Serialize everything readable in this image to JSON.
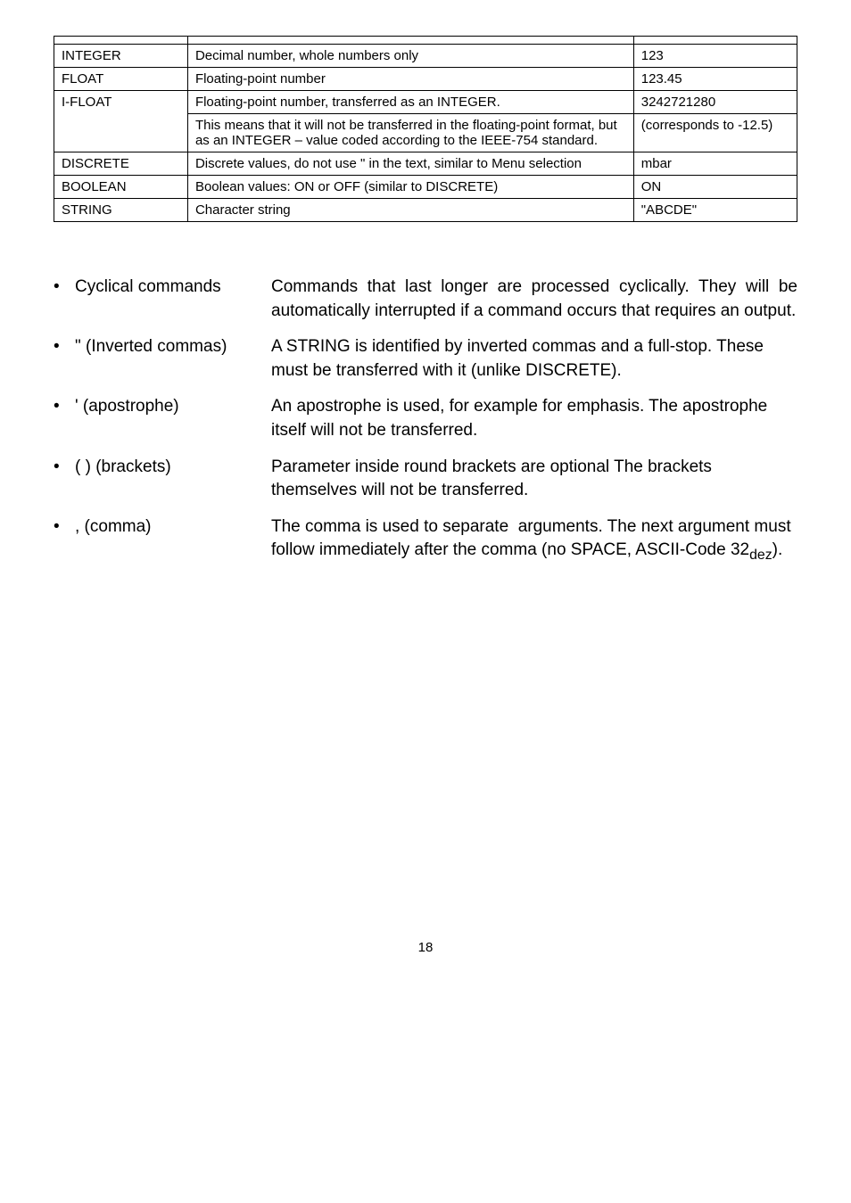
{
  "table": {
    "rows": [
      {
        "c1": "INTEGER",
        "c2": "Decimal number, whole numbers only",
        "c3": "123"
      },
      {
        "c1": "FLOAT",
        "c2": "Floating-point number",
        "c3": "123.45"
      },
      {
        "c1": "I-FLOAT",
        "c2": "Floating-point number, transferred as an INTEGER.",
        "c3": "3242721280"
      },
      {
        "c1": "",
        "c2": "This means that it will not be transferred in the floating-point format, but as an INTEGER – value coded according to the IEEE-754 standard.",
        "c3": "(corresponds to -12.5)"
      },
      {
        "c1": "DISCRETE",
        "c2": "Discrete values, do not use \" in the text, similar to Menu selection",
        "c3": "mbar"
      },
      {
        "c1": "BOOLEAN",
        "c2": "Boolean values: ON or OFF (similar to DISCRETE)",
        "c3": "ON"
      },
      {
        "c1": "STRING",
        "c2": "Character string",
        "c3": "\"ABCDE\""
      }
    ],
    "header_row": {
      "c1": "",
      "c2": "",
      "c3": ""
    }
  },
  "bullets": [
    {
      "label": "Cyclical commands",
      "desc": "Commands that last longer are processed cyclically. They will be automatically interrupted if a command occurs  that requires an output.",
      "justify": true
    },
    {
      "label": "\" (Inverted commas)",
      "desc": "A STRING is identified by inverted commas and a full-stop. These must be transferred with it (unlike DISCRETE).",
      "justify": false
    },
    {
      "label": "' (apostrophe)",
      "desc": "An apostrophe is used, for example for emphasis. The apostrophe itself will not be transferred.",
      "justify": false
    },
    {
      "label": "(  ) (brackets)",
      "desc": "Parameter inside round brackets are optional The brackets themselves will not be transferred.",
      "justify": false
    },
    {
      "label": ", (comma)",
      "desc": "The comma is used to separate  arguments. The next argument must follow immediately after the comma (no SPACE, ASCII-Code 32dez).",
      "justify": false
    }
  ],
  "page_number": "18",
  "colors": {
    "text": "#000000",
    "background": "#ffffff",
    "border": "#000000"
  }
}
